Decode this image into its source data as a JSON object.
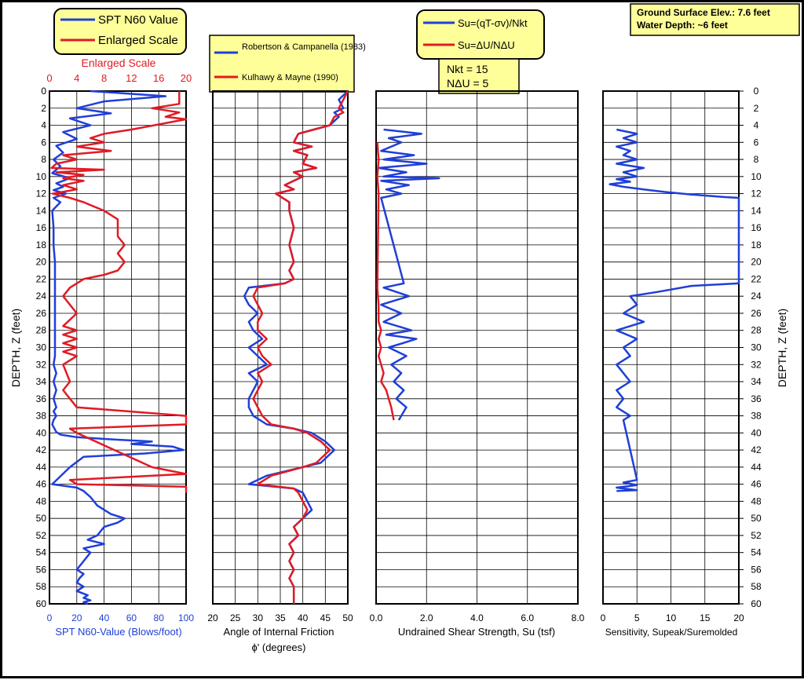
{
  "info_box": {
    "line1": "Ground Surface Elev.: 7.6 feet",
    "line2": "Water Depth: ~6 feet"
  },
  "depth_axis_label": "DEPTH, Z (feet)",
  "colors": {
    "blue": "#1f3fd8",
    "red": "#e01b24",
    "legend_bg": "#ffff99",
    "grid": "#000000"
  },
  "chart_data": [
    {
      "type": "line",
      "title": "SPT N60 Value",
      "xlabel": "SPT N60-Value (Blows/foot)",
      "xlim": [
        0,
        100
      ],
      "xticks": [
        0,
        20,
        40,
        60,
        80,
        100
      ],
      "top_axis": {
        "label": "Enlarged Scale",
        "lim": [
          0,
          20
        ],
        "ticks": [
          0,
          4,
          8,
          12,
          16,
          20
        ]
      },
      "ylim": [
        0,
        60
      ],
      "yticks": [
        0,
        2,
        4,
        6,
        8,
        10,
        12,
        14,
        16,
        18,
        20,
        22,
        24,
        26,
        28,
        30,
        32,
        34,
        36,
        38,
        40,
        42,
        44,
        46,
        48,
        50,
        52,
        54,
        56,
        58,
        60
      ],
      "legend": [
        "SPT N60 Value",
        "Enlarged Scale"
      ],
      "series": [
        {
          "name": "SPT N60 Value",
          "color": "blue",
          "x": [
            30,
            85,
            40,
            20,
            45,
            15,
            30,
            10,
            20,
            5,
            10,
            3,
            8,
            2,
            15,
            5,
            10,
            3,
            12,
            3,
            8,
            2,
            3,
            3,
            4,
            4,
            4,
            4,
            4,
            4,
            4,
            4,
            3,
            5,
            3,
            5,
            3,
            5,
            3,
            5,
            3,
            2,
            3,
            4,
            5,
            8,
            20,
            50,
            75,
            60,
            90,
            98,
            70,
            25,
            15,
            2,
            20,
            25,
            30,
            35,
            45,
            55,
            50,
            40,
            35,
            28,
            40,
            25,
            30,
            25,
            20,
            25,
            22,
            20,
            25,
            20,
            28,
            25,
            30,
            25,
            28
          ],
          "y": [
            0,
            0.6,
            1.2,
            2,
            2.6,
            3.2,
            4,
            4.8,
            5.6,
            6.4,
            7.2,
            8,
            8.8,
            9.6,
            10.2,
            10.8,
            11.2,
            11.6,
            12,
            12.5,
            13,
            14,
            16,
            18,
            20,
            22,
            24,
            26,
            28,
            29,
            30,
            31,
            32,
            33,
            34,
            35,
            36,
            37,
            37.5,
            38,
            38.5,
            39,
            39.3,
            39.6,
            39.9,
            40.2,
            40.5,
            40.8,
            41,
            41.3,
            41.6,
            42,
            42.4,
            42.8,
            44,
            46,
            46.4,
            46.8,
            47.5,
            48.5,
            49.5,
            50,
            50.5,
            51,
            52,
            52.5,
            53,
            53.5,
            54,
            55,
            56,
            56.5,
            57,
            57.5,
            58,
            58.5,
            59,
            59.3,
            59.6,
            59.8,
            60
          ]
        },
        {
          "name": "Enlarged Scale",
          "color": "red",
          "x": [
            19,
            19,
            15,
            19,
            17,
            20,
            12,
            8,
            6,
            8,
            4,
            9,
            2,
            4,
            1,
            0.3,
            8,
            1,
            5,
            2,
            5,
            2,
            4,
            0.5,
            3,
            5,
            8,
            10,
            10,
            10,
            11,
            10,
            11,
            10,
            8,
            5,
            4,
            3,
            2,
            4,
            2,
            4,
            2,
            4,
            2,
            4,
            2,
            4,
            2,
            3,
            2,
            3,
            4,
            20,
            20,
            3,
            4,
            15,
            20,
            3,
            4,
            20,
            20,
            20
          ],
          "y": [
            0,
            1.5,
            2,
            2.5,
            3,
            3.3,
            4.5,
            5,
            5.5,
            6,
            6.5,
            7,
            7.5,
            8,
            8.5,
            9,
            9.2,
            9.5,
            9.8,
            10.2,
            10.5,
            11,
            11.5,
            12,
            12.5,
            13,
            14,
            15,
            16,
            17,
            18,
            19,
            20,
            21,
            21.5,
            22,
            22.5,
            23,
            24,
            26,
            27.5,
            28,
            28.5,
            29,
            29.5,
            30,
            30.5,
            31,
            32,
            34,
            35,
            36,
            37,
            38,
            39,
            39.5,
            40,
            44,
            44.8,
            45.5,
            46,
            46.3,
            47,
            47
          ]
        }
      ]
    },
    {
      "type": "line",
      "xlabel": "Angle of Internal Friction",
      "xlabel2": "ϕ' (degrees)",
      "xlim": [
        20,
        50
      ],
      "xticks": [
        20,
        25,
        30,
        35,
        40,
        45,
        50
      ],
      "ylim": [
        0,
        60
      ],
      "legend": [
        "Robertson & Campanella (1983)",
        "Kulhawy & Mayne (1990)"
      ],
      "series": [
        {
          "name": "Robertson & Campanella (1983)",
          "color": "blue",
          "x": [
            50,
            48,
            49,
            47,
            48,
            46,
            39,
            38,
            42,
            38,
            41,
            40,
            43,
            38,
            40,
            36,
            38,
            34,
            37,
            37,
            38,
            37,
            38,
            37,
            38,
            36,
            28,
            27,
            28,
            30,
            28,
            29,
            31,
            28,
            30,
            32,
            28,
            30,
            28,
            28,
            29,
            32,
            38,
            42,
            45,
            47,
            45,
            44,
            40,
            32,
            28,
            38,
            40,
            41,
            42,
            40,
            38,
            39,
            37,
            38,
            37,
            38,
            37,
            38,
            38
          ],
          "y": [
            0,
            1,
            2,
            2.5,
            3,
            4,
            5,
            6,
            6.5,
            7,
            7.5,
            8.5,
            9,
            9.5,
            10,
            11,
            11.5,
            12,
            13,
            14,
            16,
            18,
            20,
            21,
            22,
            22.5,
            23,
            24,
            25,
            26,
            27,
            28,
            29,
            30,
            31,
            32,
            33,
            34,
            36,
            37,
            38,
            39,
            39.5,
            40,
            41,
            42,
            43,
            43.5,
            44,
            45,
            46,
            46.5,
            47,
            48,
            49,
            50,
            51,
            52,
            53,
            54,
            55,
            56,
            57,
            58,
            60
          ]
        },
        {
          "name": "Kulhawy & Mayne (1990)",
          "color": "red",
          "x": [
            50,
            49,
            48,
            49,
            47,
            46,
            39,
            38,
            42,
            38,
            41,
            40,
            43,
            38,
            40,
            36,
            38,
            34,
            37,
            37,
            38,
            37,
            38,
            37,
            38,
            36,
            30,
            29,
            30,
            31,
            30,
            30,
            32,
            30,
            31,
            33,
            30,
            31,
            29,
            30,
            31,
            33,
            38,
            41,
            44,
            46,
            44,
            43,
            40,
            33,
            30,
            38,
            39,
            40,
            41,
            40,
            38,
            39,
            37,
            38,
            37,
            38,
            37,
            38,
            38
          ],
          "y": [
            0,
            1,
            2,
            2.5,
            3,
            4,
            5,
            6,
            6.5,
            7,
            7.5,
            8.5,
            9,
            9.5,
            10,
            11,
            11.5,
            12,
            13,
            14,
            16,
            18,
            20,
            21,
            22,
            22.5,
            23,
            24,
            25,
            26,
            27,
            28,
            29,
            30,
            31,
            32,
            33,
            34,
            36,
            37,
            38,
            39,
            39.5,
            40,
            41,
            42,
            43,
            43.5,
            44,
            45,
            46,
            46.5,
            47,
            48,
            49,
            50,
            51,
            52,
            53,
            54,
            55,
            56,
            57,
            58,
            60
          ]
        }
      ]
    },
    {
      "type": "line",
      "xlabel": "Undrained Shear Strength, Su (tsf)",
      "xlim": [
        0,
        8
      ],
      "xticks": [
        0,
        2,
        4,
        6,
        8
      ],
      "xticklabels": [
        "0.0",
        "2.0",
        "4.0",
        "6.0",
        "8.0"
      ],
      "ylim": [
        0,
        60
      ],
      "legend": [
        "Su=(qT-σv)/Nkt",
        "Su=ΔU/NΔU"
      ],
      "params": [
        "Nkt = 15",
        "NΔU = 5"
      ],
      "series": [
        {
          "name": "Su=(qT-σv)/Nkt",
          "color": "blue",
          "x": [
            0.3,
            1.8,
            0.5,
            1.0,
            0.2,
            1.5,
            0.3,
            2.0,
            0.1,
            1.2,
            0.3,
            2.5,
            0.2,
            1.3,
            0.4,
            1.0,
            0.2,
            1.1,
            0.3,
            1.3,
            0.2,
            1.0,
            0.3,
            1.4,
            0.4,
            1.6,
            0.5,
            1.2,
            0.6,
            1.0,
            0.7,
            1.1,
            0.8,
            1.2,
            0.9
          ],
          "y": [
            4.5,
            5,
            5.5,
            6,
            7,
            7.5,
            8,
            8.5,
            9,
            9.5,
            10,
            10.2,
            10.5,
            11,
            11.5,
            12,
            12.5,
            22.5,
            23,
            24,
            25,
            26,
            27,
            28,
            28.5,
            29,
            30,
            31,
            32,
            33,
            34,
            35,
            36,
            37,
            38.5
          ]
        },
        {
          "name": "Su=ΔU/NΔU",
          "color": "red",
          "x": [
            0.05,
            0.1,
            0.05,
            0.1,
            0.05,
            0.1,
            0.1,
            0.2,
            0.1,
            0.2,
            0.1,
            0.3,
            0.2,
            0.4,
            0.5,
            0.6,
            0.7
          ],
          "y": [
            6,
            8,
            10,
            12,
            23,
            25,
            27,
            28,
            29,
            30,
            31,
            33,
            34,
            35,
            36,
            37,
            38.5
          ]
        }
      ]
    },
    {
      "type": "line",
      "xlabel": "Sensitivity, Supeak/Suremolded",
      "xlim": [
        0,
        20
      ],
      "xticks": [
        0,
        5,
        10,
        15,
        20
      ],
      "ylim": [
        0,
        60
      ],
      "series": [
        {
          "name": "Sensitivity",
          "color": "blue",
          "x": [
            2,
            5,
            3,
            5,
            2,
            4,
            3,
            5,
            2,
            6,
            3,
            5,
            2,
            4,
            1,
            3,
            6,
            9,
            13,
            18,
            20,
            20,
            13,
            8,
            4,
            5,
            3,
            6,
            2,
            5,
            3,
            4,
            2,
            3,
            4,
            2,
            3,
            2,
            4,
            3,
            5,
            3,
            5,
            2,
            5,
            2
          ],
          "y": [
            4.5,
            5,
            5.5,
            6,
            6.5,
            7,
            7.5,
            8,
            8.5,
            9,
            9.5,
            10,
            10.3,
            10.6,
            10.9,
            11.2,
            11.5,
            11.8,
            12.1,
            12.4,
            12.5,
            22.5,
            22.8,
            23.5,
            24,
            25,
            26,
            27,
            28,
            29,
            30,
            31,
            32,
            33,
            34,
            35,
            36,
            37,
            38,
            38.5,
            45.5,
            45.8,
            46.1,
            46.4,
            46.7,
            46.8
          ]
        }
      ]
    }
  ]
}
